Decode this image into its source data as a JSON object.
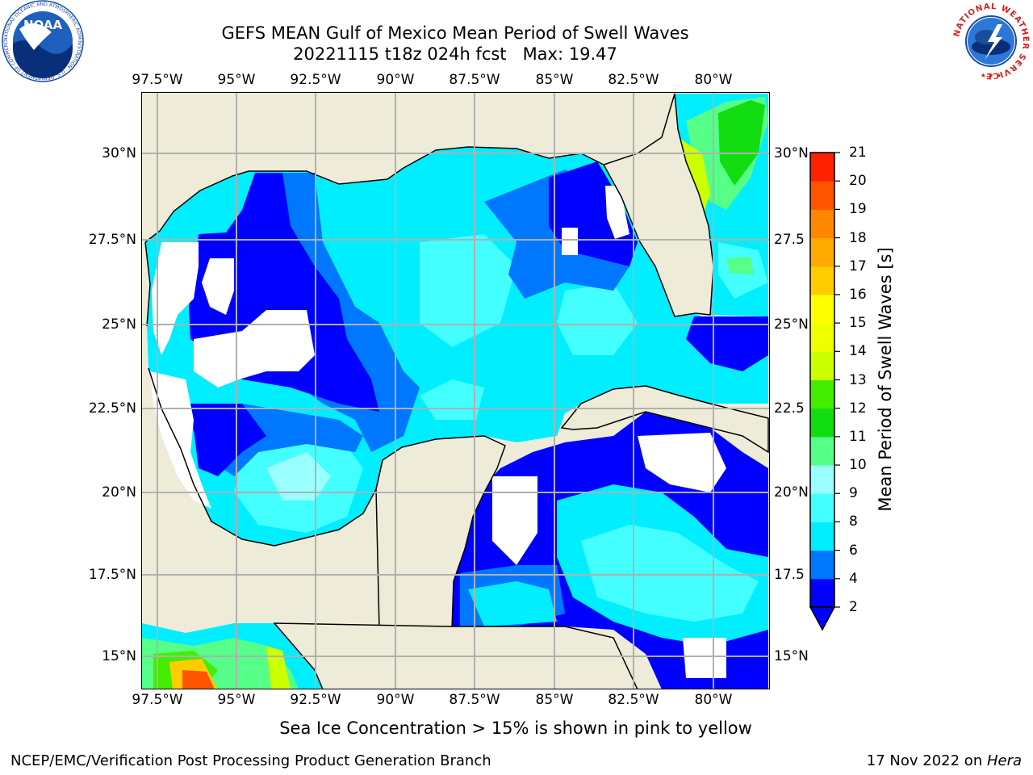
{
  "header": {
    "title_line1": "GEFS MEAN Gulf of Mexico Mean Period of Swell Waves",
    "title_line2": "20221115 t18z 024h fcst   Max: 19.47"
  },
  "logos": {
    "noaa_text": "NOAA",
    "noaa_ring_text": "NATIONAL OCEANIC AND ATMOSPHERIC ADMINISTRATION · U.S. DEPARTMENT OF COMMERCE",
    "nws_ring_text": "NATIONAL WEATHER SERVICE"
  },
  "map": {
    "lon_labels": [
      "97.5°W",
      "95°W",
      "92.5°W",
      "90°W",
      "87.5°W",
      "85°W",
      "82.5°W",
      "80°W"
    ],
    "lat_labels_left": [
      "30°N",
      "27.5°N",
      "25°N",
      "22.5°N",
      "20°N",
      "17.5°N",
      "15°N"
    ],
    "lat_labels_right": [
      "30°N",
      "27.5",
      "25°N",
      "22.5",
      "20°N",
      "17.5",
      "15°N"
    ],
    "colors": {
      "land": "#eeecd9",
      "coast": "#000000",
      "grid": "#b0b0b0",
      "no_data": "#ffffff"
    }
  },
  "colorbar": {
    "label": "Mean Period of Swell Waves [s]",
    "ticks": [
      "2",
      "4",
      "6",
      "8",
      "9",
      "10",
      "11",
      "12",
      "13",
      "14",
      "15",
      "16",
      "17",
      "18",
      "19",
      "20",
      "21"
    ],
    "colors": [
      "#0000ff",
      "#0077ff",
      "#00eeff",
      "#44ffff",
      "#99ffff",
      "#55ff88",
      "#11dd11",
      "#44ee00",
      "#ccff00",
      "#eeff00",
      "#ffff00",
      "#ffcc00",
      "#ffaa00",
      "#ff8800",
      "#ff5500",
      "#ff2200"
    ]
  },
  "footer": {
    "sea_ice_note": "Sea Ice Concentration > 15% is shown in pink to yellow",
    "credit": "NCEP/EMC/Verification Post Processing Product Generation Branch",
    "date_prefix": "17 Nov 2022 on ",
    "machine": "Hera"
  }
}
